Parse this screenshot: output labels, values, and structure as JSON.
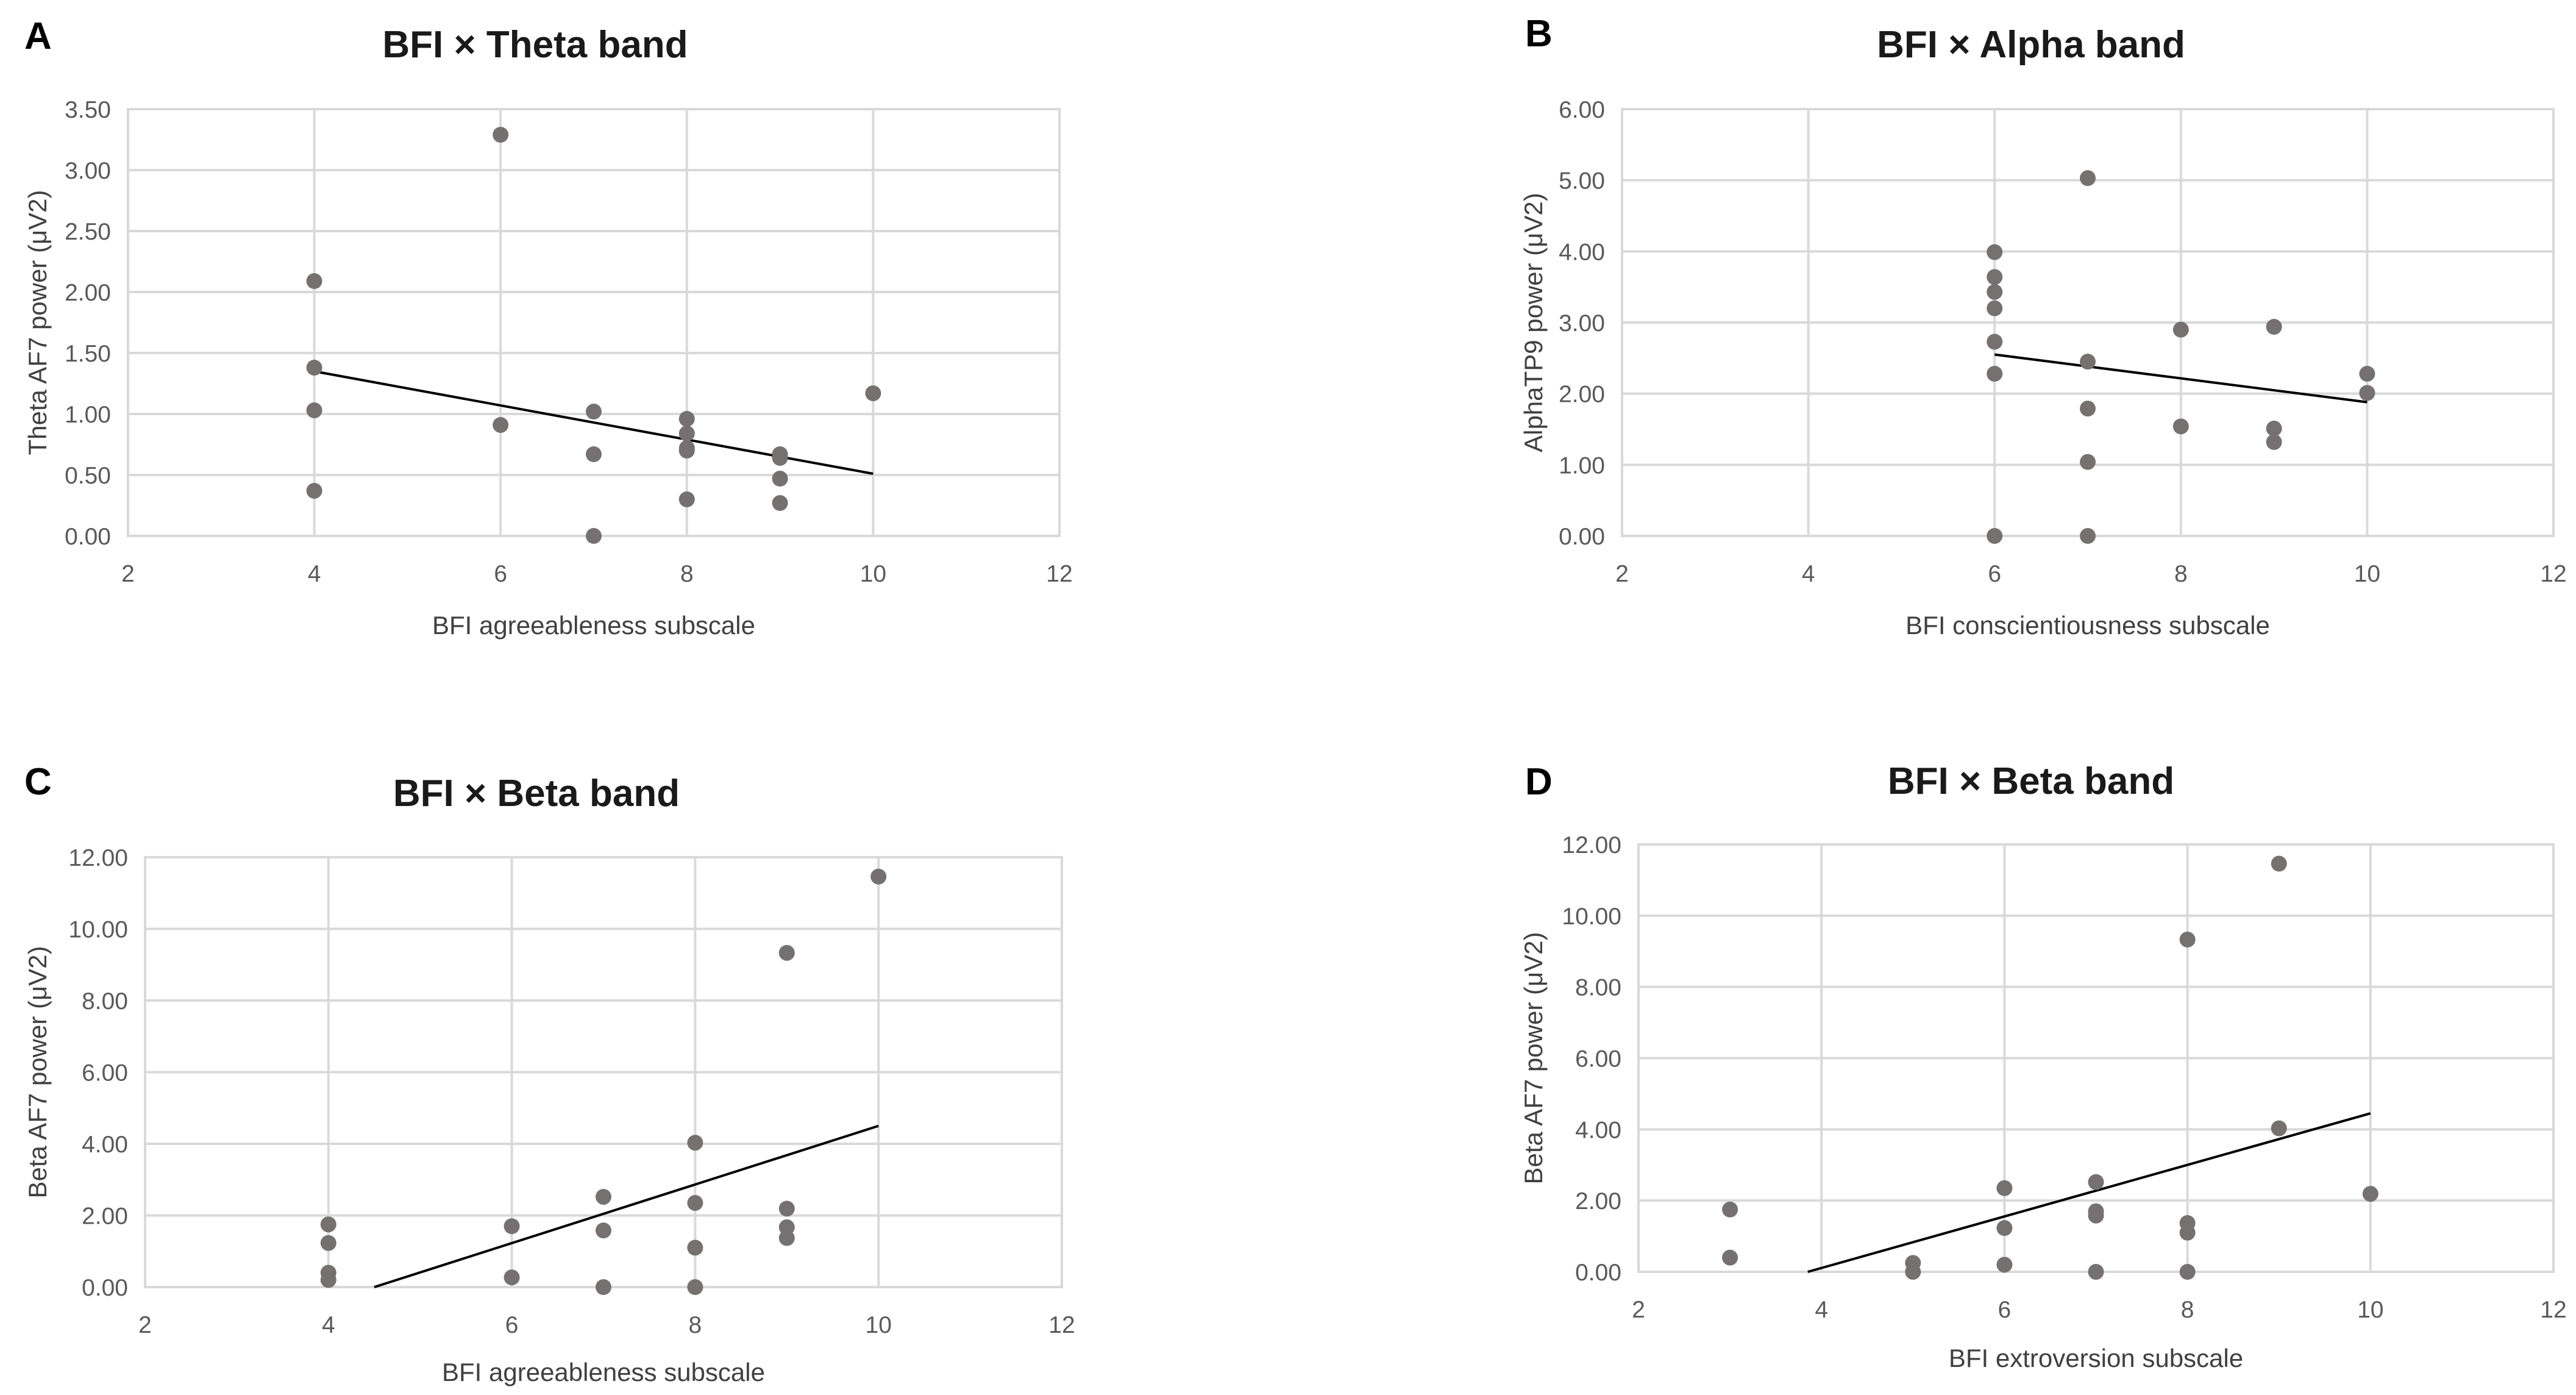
{
  "chart_data": [
    {
      "panel": "A",
      "type": "scatter",
      "title": "BFI × Theta band",
      "xlabel": "BFI agreeableness subscale",
      "ylabel": "Theta AF7 power (μV2)",
      "xlim": [
        2,
        12
      ],
      "ylim": [
        0,
        3.5
      ],
      "xticks": [
        2,
        4,
        6,
        8,
        10,
        12
      ],
      "yticks": [
        0,
        0.5,
        1,
        1.5,
        2,
        2.5,
        3,
        3.5
      ],
      "y_decimals": 2,
      "x": [
        4,
        4,
        4,
        4,
        6,
        6,
        7,
        7,
        7,
        8,
        8,
        8,
        8,
        8,
        9,
        9,
        9,
        9,
        10
      ],
      "y": [
        2.09,
        1.38,
        1.03,
        0.37,
        3.29,
        0.91,
        1.02,
        0.67,
        0.0,
        0.96,
        0.84,
        0.7,
        0.72,
        0.3,
        0.67,
        0.64,
        0.47,
        0.27,
        1.17
      ],
      "trendline": {
        "x": [
          4,
          10
        ],
        "y": [
          1.35,
          0.51
        ]
      }
    },
    {
      "panel": "B",
      "type": "scatter",
      "title": "BFI × Alpha band",
      "xlabel": "BFI conscientiousness subscale",
      "ylabel": "AlphaTP9 power (μV2)",
      "xlim": [
        2,
        12
      ],
      "ylim": [
        0,
        6
      ],
      "xticks": [
        2,
        4,
        6,
        8,
        10,
        12
      ],
      "yticks": [
        0,
        1,
        2,
        3,
        4,
        5,
        6
      ],
      "y_decimals": 2,
      "x": [
        6,
        6,
        6,
        6,
        6,
        6,
        6,
        7,
        7,
        7,
        7,
        7,
        8,
        8,
        9,
        9,
        9,
        10,
        10
      ],
      "y": [
        3.99,
        3.64,
        3.43,
        3.2,
        2.73,
        2.28,
        0.0,
        5.03,
        2.45,
        1.79,
        1.04,
        0.0,
        2.9,
        1.54,
        2.94,
        1.51,
        1.32,
        2.28,
        2.01
      ],
      "trendline": {
        "x": [
          6,
          10
        ],
        "y": [
          2.55,
          1.88
        ]
      }
    },
    {
      "panel": "C",
      "type": "scatter",
      "title": "BFI × Beta band",
      "xlabel": "BFI agreeableness subscale",
      "ylabel": "Beta AF7 power (μV2)",
      "xlim": [
        2,
        12
      ],
      "ylim": [
        0,
        12
      ],
      "xticks": [
        2,
        4,
        6,
        8,
        10,
        12
      ],
      "yticks": [
        0,
        2,
        4,
        6,
        8,
        10,
        12
      ],
      "y_decimals": 2,
      "x": [
        4,
        4,
        4,
        4,
        6,
        6,
        7,
        7,
        7,
        8,
        8,
        8,
        8,
        9,
        9,
        9,
        9,
        10
      ],
      "y": [
        1.75,
        1.23,
        0.4,
        0.2,
        1.7,
        0.27,
        2.52,
        1.58,
        0.0,
        4.03,
        2.35,
        1.1,
        0.0,
        9.33,
        2.19,
        1.67,
        1.37,
        11.46
      ],
      "trendline": {
        "x": [
          4.5,
          10
        ],
        "y": [
          0,
          4.5
        ]
      }
    },
    {
      "panel": "D",
      "type": "scatter",
      "title": "BFI × Beta band",
      "xlabel": "BFI extroversion subscale",
      "ylabel": "Beta AF7 power (μV2)",
      "xlim": [
        2,
        12
      ],
      "ylim": [
        0,
        12
      ],
      "xticks": [
        2,
        4,
        6,
        8,
        10,
        12
      ],
      "yticks": [
        0,
        2,
        4,
        6,
        8,
        10,
        12
      ],
      "y_decimals": 2,
      "x": [
        3,
        3,
        5,
        5,
        6,
        6,
        6,
        7,
        7,
        7,
        7,
        8,
        8,
        8,
        8,
        9,
        9,
        10
      ],
      "y": [
        1.75,
        0.4,
        0.25,
        0.0,
        2.35,
        1.23,
        0.2,
        2.52,
        1.7,
        1.58,
        0.0,
        9.33,
        1.37,
        1.1,
        0.0,
        11.46,
        4.03,
        2.19
      ],
      "trendline": {
        "x": [
          3.85,
          10
        ],
        "y": [
          0,
          4.45
        ]
      }
    }
  ]
}
